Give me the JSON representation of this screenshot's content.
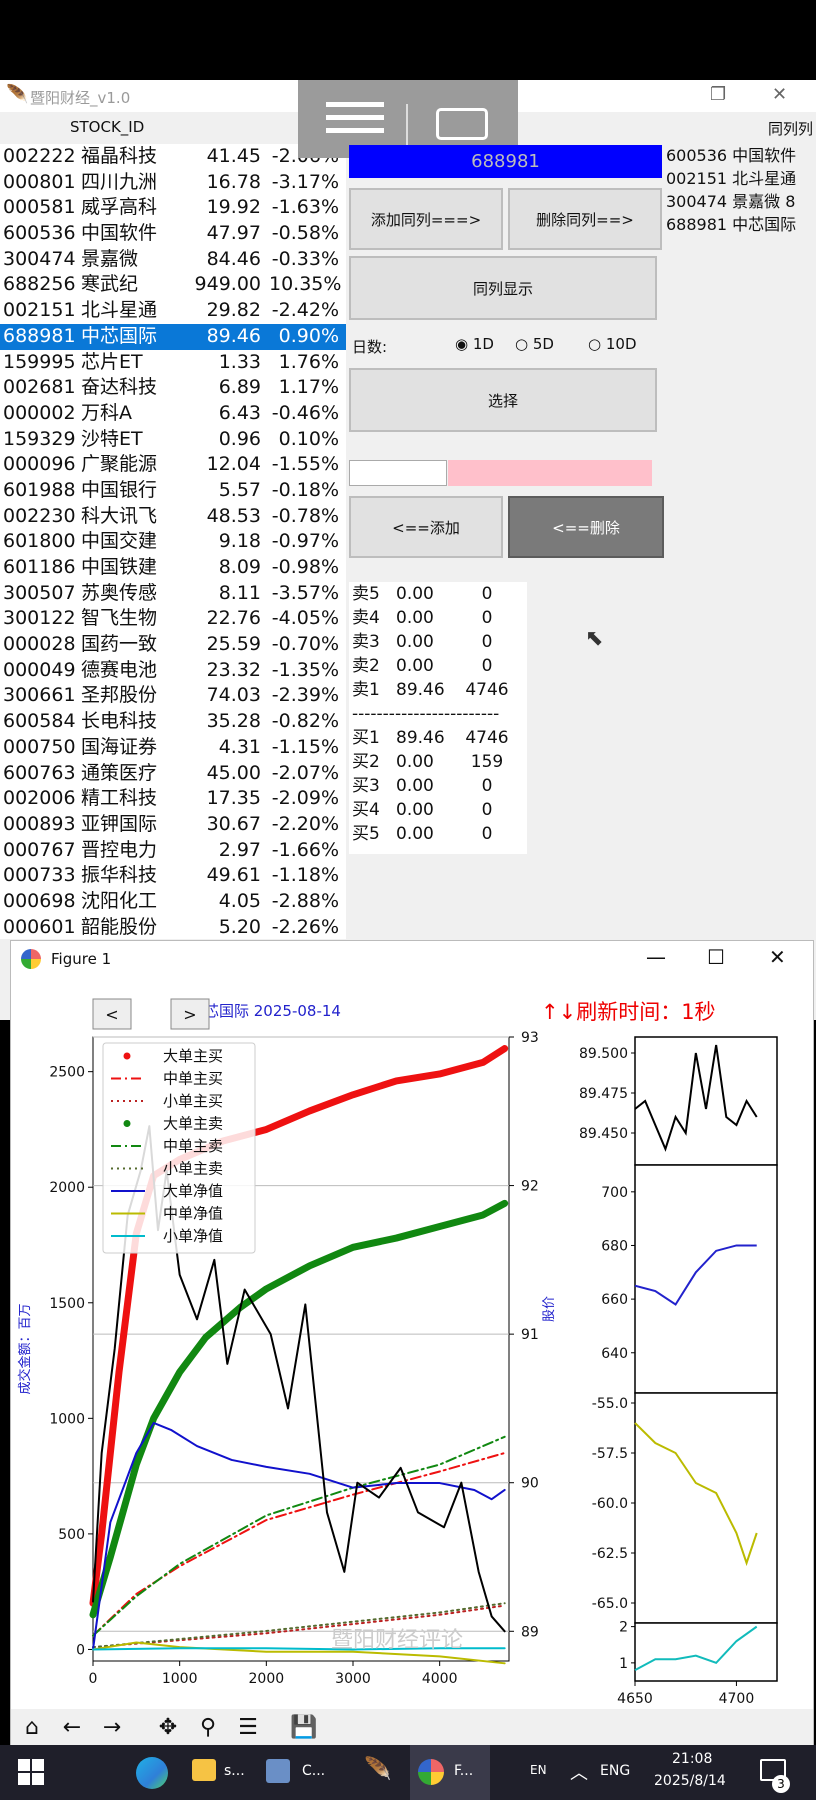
{
  "app": {
    "title": "暨阳财经_v1.0",
    "header_left": "STOCK_ID",
    "header_right": "同列列"
  },
  "stocks": [
    {
      "code": "002222",
      "name": "福晶科技",
      "price": "41.45",
      "chg": "-2.06%"
    },
    {
      "code": "000801",
      "name": "四川九洲",
      "price": "16.78",
      "chg": "-3.17%"
    },
    {
      "code": "000581",
      "name": "威孚高科",
      "price": "19.92",
      "chg": "-1.63%"
    },
    {
      "code": "600536",
      "name": "中国软件",
      "price": "47.97",
      "chg": "-0.58%"
    },
    {
      "code": "300474",
      "name": "景嘉微",
      "price": "84.46",
      "chg": "-0.33%"
    },
    {
      "code": "688256",
      "name": "寒武纪",
      "price": "949.00",
      "chg": "10.35%"
    },
    {
      "code": "002151",
      "name": "北斗星通",
      "price": "29.82",
      "chg": "-2.42%"
    },
    {
      "code": "688981",
      "name": "中芯国际",
      "price": "89.46",
      "chg": "0.90%"
    },
    {
      "code": "159995",
      "name": "芯片ET",
      "price": "1.33",
      "chg": "1.76%"
    },
    {
      "code": "002681",
      "name": "奋达科技",
      "price": "6.89",
      "chg": "1.17%"
    },
    {
      "code": "000002",
      "name": "万科A",
      "price": "6.43",
      "chg": "-0.46%"
    },
    {
      "code": "159329",
      "name": "沙特ET",
      "price": "0.96",
      "chg": "0.10%"
    },
    {
      "code": "000096",
      "name": "广聚能源",
      "price": "12.04",
      "chg": "-1.55%"
    },
    {
      "code": "601988",
      "name": "中国银行",
      "price": "5.57",
      "chg": "-0.18%"
    },
    {
      "code": "002230",
      "name": "科大讯飞",
      "price": "48.53",
      "chg": "-0.78%"
    },
    {
      "code": "601800",
      "name": "中国交建",
      "price": "9.18",
      "chg": "-0.97%"
    },
    {
      "code": "601186",
      "name": "中国铁建",
      "price": "8.09",
      "chg": "-0.98%"
    },
    {
      "code": "300507",
      "name": "苏奥传感",
      "price": "8.11",
      "chg": "-3.57%"
    },
    {
      "code": "300122",
      "name": "智飞生物",
      "price": "22.76",
      "chg": "-4.05%"
    },
    {
      "code": "000028",
      "name": "国药一致",
      "price": "25.59",
      "chg": "-0.70%"
    },
    {
      "code": "000049",
      "name": "德赛电池",
      "price": "23.32",
      "chg": "-1.35%"
    },
    {
      "code": "300661",
      "name": "圣邦股份",
      "price": "74.03",
      "chg": "-2.39%"
    },
    {
      "code": "600584",
      "name": "长电科技",
      "price": "35.28",
      "chg": "-0.82%"
    },
    {
      "code": "000750",
      "name": "国海证券",
      "price": "4.31",
      "chg": "-1.15%"
    },
    {
      "code": "600763",
      "name": "通策医疗",
      "price": "45.00",
      "chg": "-2.07%"
    },
    {
      "code": "002006",
      "name": "精工科技",
      "price": "17.35",
      "chg": "-2.09%"
    },
    {
      "code": "000893",
      "name": "亚钾国际",
      "price": "30.67",
      "chg": "-2.20%"
    },
    {
      "code": "000767",
      "name": "晋控电力",
      "price": "2.97",
      "chg": "-1.66%"
    },
    {
      "code": "000733",
      "name": "振华科技",
      "price": "49.61",
      "chg": "-1.18%"
    },
    {
      "code": "000698",
      "name": "沈阳化工",
      "price": "4.05",
      "chg": "-2.88%"
    },
    {
      "code": "000601",
      "name": "韶能股份",
      "price": "5.20",
      "chg": "-2.26%"
    }
  ],
  "selected_code": "688981",
  "buttons": {
    "add_peer": "添加同列===>",
    "del_peer": "删除同列==>",
    "show_peer": "同列显示",
    "select": "选择",
    "add": "<==添加",
    "del": "<==删除"
  },
  "days": {
    "label": "日数:",
    "opt1": "1D",
    "opt2": "5D",
    "opt3": "10D",
    "selected": "1D"
  },
  "quote": {
    "sell": [
      [
        "卖5",
        "0.00",
        "0"
      ],
      [
        "卖4",
        "0.00",
        "0"
      ],
      [
        "卖3",
        "0.00",
        "0"
      ],
      [
        "卖2",
        "0.00",
        "0"
      ],
      [
        "卖1",
        "89.46",
        "4746"
      ]
    ],
    "divider": "------------------------",
    "buy": [
      [
        "买1",
        "89.46",
        "4746"
      ],
      [
        "买2",
        "0.00",
        "159"
      ],
      [
        "买3",
        "0.00",
        "0"
      ],
      [
        "买4",
        "0.00",
        "0"
      ],
      [
        "买5",
        "0.00",
        "0"
      ]
    ]
  },
  "peers": [
    "600536 中国软件",
    "002151 北斗星通",
    "300474 景嘉微  8",
    "688981 中芯国际"
  ],
  "figure": {
    "window_title": "Figure 1",
    "header": "中芯国际  2025-08-14",
    "refresh": "↑↓刷新时间：1秒",
    "watermark": "暨阳财经评论",
    "nav_prev": "<",
    "nav_next": ">"
  },
  "chart_data": [
    {
      "type": "line",
      "title": "中芯国际  2025-08-14",
      "ylabel": "成交金额：百万",
      "y2label": "股价",
      "xlim": [
        0,
        4800
      ],
      "ylim": [
        -50,
        2650
      ],
      "y2lim": [
        88.8,
        93
      ],
      "xticks": [
        "0",
        "1000",
        "2000",
        "3000",
        "4000"
      ],
      "yticks": [
        "0",
        "500",
        "1000",
        "1500",
        "2000",
        "2500"
      ],
      "y2ticks": [
        "89",
        "90",
        "91",
        "92",
        "93"
      ],
      "legend": [
        "大单主买",
        "中单主买",
        "小单主买",
        "大单主卖",
        "中单主卖",
        "小单主卖",
        "大单净值",
        "中单净值",
        "小单净值"
      ],
      "legend_position": "upper-left",
      "grid": true,
      "series": [
        {
          "name": "大单主买",
          "color": "#ee1111",
          "x": [
            0,
            100,
            300,
            500,
            700,
            1000,
            1500,
            2000,
            2500,
            3000,
            3500,
            4000,
            4500,
            4750
          ],
          "y": [
            200,
            500,
            1200,
            1800,
            2050,
            2120,
            2200,
            2250,
            2330,
            2400,
            2460,
            2490,
            2540,
            2600
          ]
        },
        {
          "name": "中单主买",
          "color": "#ee1111",
          "x": [
            0,
            500,
            1000,
            2000,
            3000,
            4000,
            4750
          ],
          "y": [
            60,
            240,
            360,
            560,
            670,
            770,
            850
          ]
        },
        {
          "name": "小单主买",
          "color": "#bb2222",
          "x": [
            0,
            1000,
            2000,
            3000,
            4000,
            4750
          ],
          "y": [
            10,
            40,
            70,
            110,
            150,
            190
          ]
        },
        {
          "name": "大单主卖",
          "color": "#118811",
          "x": [
            0,
            200,
            500,
            700,
            1000,
            1300,
            1700,
            2000,
            2500,
            3000,
            3500,
            4000,
            4500,
            4750
          ],
          "y": [
            150,
            400,
            800,
            1000,
            1200,
            1350,
            1480,
            1560,
            1660,
            1740,
            1780,
            1830,
            1880,
            1930
          ]
        },
        {
          "name": "中单主卖",
          "color": "#118811",
          "x": [
            0,
            500,
            1000,
            2000,
            3000,
            4000,
            4750
          ],
          "y": [
            60,
            230,
            370,
            580,
            700,
            800,
            920
          ]
        },
        {
          "name": "小单主卖",
          "color": "#556b2f",
          "x": [
            0,
            1000,
            2000,
            3000,
            4000,
            4750
          ],
          "y": [
            10,
            45,
            80,
            120,
            160,
            200
          ]
        },
        {
          "name": "大单净值",
          "color": "#1111cc",
          "x": [
            0,
            200,
            500,
            700,
            900,
            1200,
            1600,
            2000,
            2500,
            3000,
            3500,
            4000,
            4400,
            4600,
            4750
          ],
          "y": [
            0,
            550,
            850,
            980,
            950,
            880,
            820,
            790,
            760,
            700,
            720,
            720,
            690,
            650,
            690
          ]
        },
        {
          "name": "中单净值",
          "color": "#bbbb00",
          "x": [
            0,
            500,
            1000,
            2000,
            3000,
            4000,
            4750
          ],
          "y": [
            0,
            30,
            10,
            -10,
            -10,
            -30,
            -60
          ]
        },
        {
          "name": "小单净值",
          "color": "#00bbcc",
          "x": [
            0,
            1000,
            2000,
            3000,
            4000,
            4750
          ],
          "y": [
            0,
            5,
            5,
            0,
            5,
            5
          ]
        },
        {
          "name": "股价",
          "color": "#000000",
          "axis": "y2",
          "x": [
            0,
            100,
            250,
            400,
            550,
            650,
            750,
            850,
            1000,
            1200,
            1400,
            1550,
            1750,
            2050,
            2250,
            2450,
            2700,
            2900,
            3050,
            3300,
            3550,
            3750,
            4050,
            4250,
            4450,
            4600,
            4750
          ],
          "y": [
            89.2,
            90.2,
            90.9,
            91.8,
            92.1,
            92.4,
            91.7,
            92.1,
            91.4,
            91.1,
            91.5,
            90.8,
            91.3,
            91.0,
            90.5,
            91.2,
            89.8,
            89.4,
            90.0,
            89.9,
            90.1,
            89.8,
            89.7,
            90.0,
            89.4,
            89.1,
            89.0
          ]
        }
      ]
    },
    {
      "type": "line",
      "ylim": [
        89.43,
        89.51
      ],
      "yticks": [
        "89.450",
        "89.475",
        "89.500"
      ],
      "series": [
        {
          "name": "",
          "color": "#000000",
          "x": [
            4650,
            4655,
            4660,
            4665,
            4670,
            4675,
            4680,
            4685,
            4690,
            4695,
            4700,
            4705,
            4710
          ],
          "y": [
            89.465,
            89.47,
            89.455,
            89.44,
            89.46,
            89.45,
            89.5,
            89.465,
            89.505,
            89.46,
            89.455,
            89.47,
            89.46
          ]
        }
      ]
    },
    {
      "type": "line",
      "ylim": [
        625,
        710
      ],
      "yticks": [
        "640",
        "660",
        "680",
        "700"
      ],
      "series": [
        {
          "name": "",
          "color": "#2222cc",
          "x": [
            4650,
            4660,
            4670,
            4680,
            4690,
            4700,
            4710
          ],
          "y": [
            665,
            663,
            658,
            670,
            678,
            680,
            680
          ]
        }
      ]
    },
    {
      "type": "line",
      "ylim": [
        -66,
        -54.5
      ],
      "yticks": [
        "-65.0",
        "-62.5",
        "-60.0",
        "-57.5",
        "-55.0"
      ],
      "series": [
        {
          "name": "",
          "color": "#bbbb00",
          "x": [
            4650,
            4660,
            4670,
            4680,
            4690,
            4700,
            4705,
            4710
          ],
          "y": [
            -56.0,
            -57.0,
            -57.5,
            -59.0,
            -59.5,
            -61.5,
            -63.0,
            -61.5
          ]
        }
      ]
    },
    {
      "type": "line",
      "ylim": [
        0.5,
        2.1
      ],
      "yticks": [
        "1",
        "2"
      ],
      "series": [
        {
          "name": "",
          "color": "#11bbbb",
          "x": [
            4650,
            4660,
            4670,
            4680,
            4690,
            4700,
            4710
          ],
          "y": [
            0.8,
            1.1,
            1.1,
            1.2,
            1.0,
            1.6,
            2.0
          ]
        }
      ]
    }
  ],
  "taskbar": {
    "items": [
      "s...",
      "C...",
      "F..."
    ],
    "lang1": "EN",
    "lang2": "ENG",
    "time": "21:08",
    "date": "2025/8/14",
    "badge": "3"
  }
}
